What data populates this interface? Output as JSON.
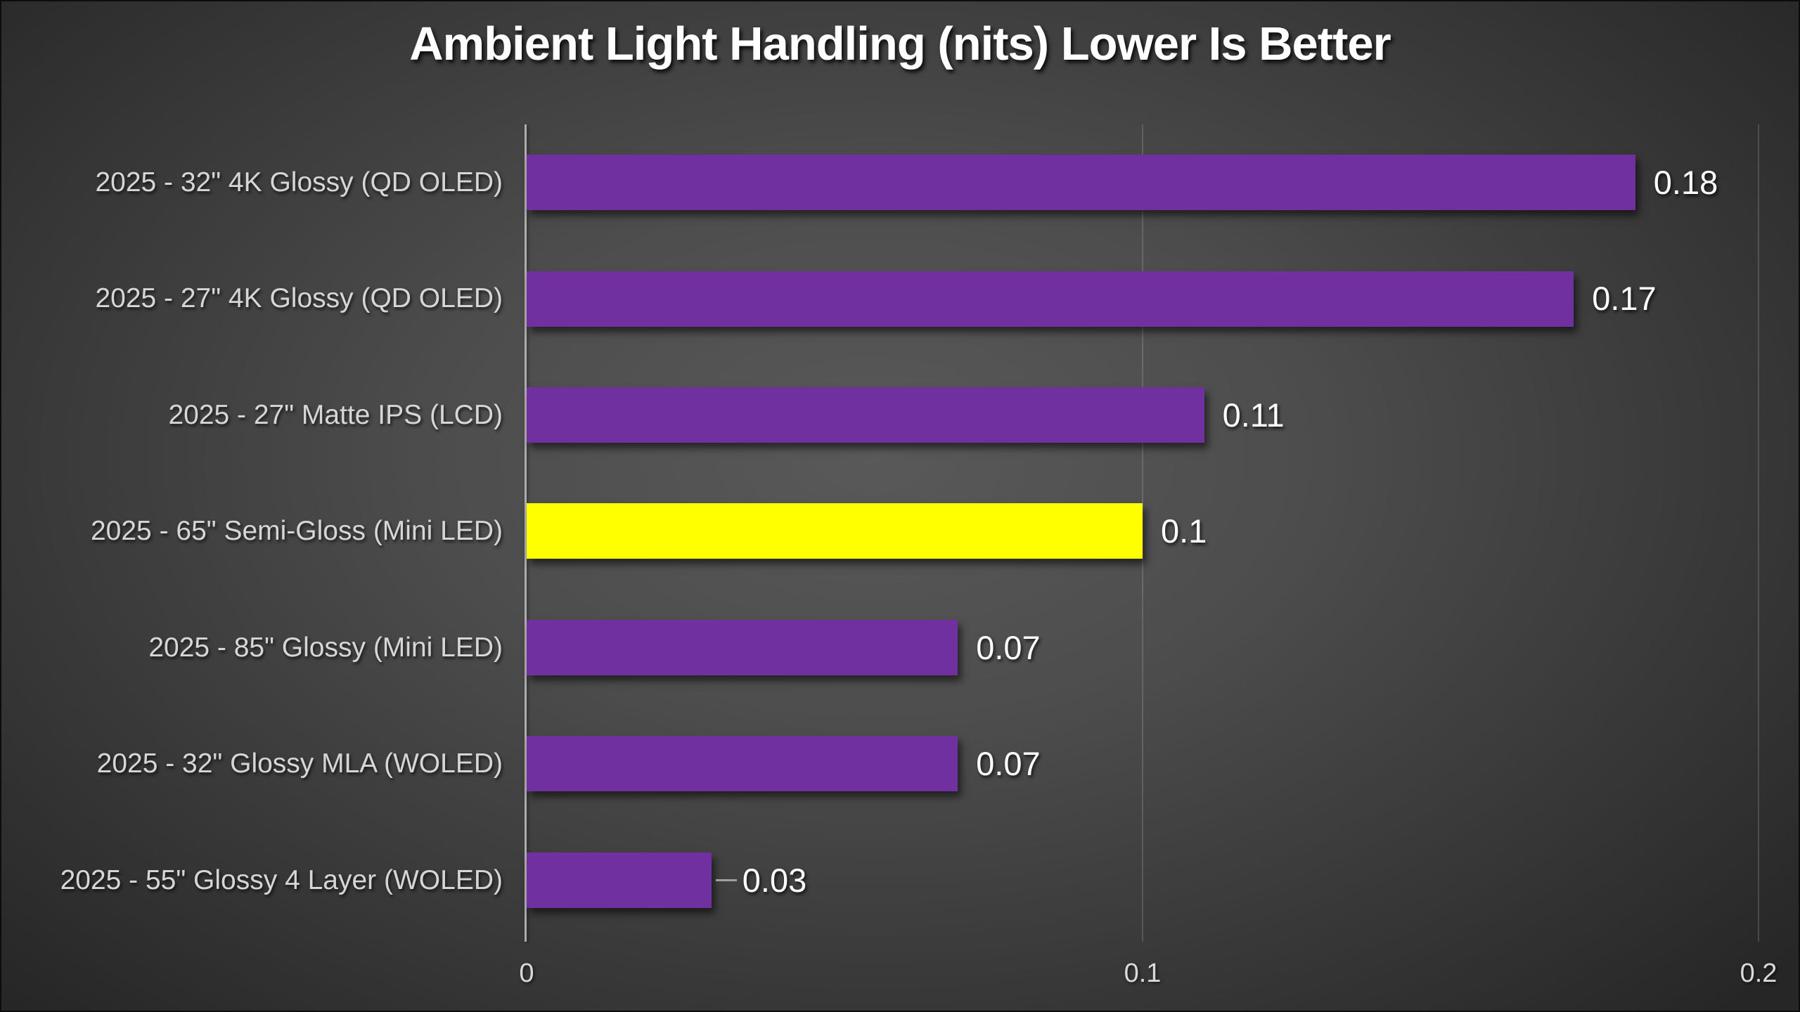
{
  "chart_data": {
    "type": "bar",
    "orientation": "horizontal",
    "title": "Ambient Light Handling (nits) Lower Is Better",
    "xlabel": "",
    "ylabel": "",
    "categories": [
      "2025 - 32\" 4K Glossy (QD OLED)",
      "2025 - 27\" 4K Glossy (QD OLED)",
      "2025 - 27\" Matte IPS (LCD)",
      "2025 - 65\" Semi-Gloss (Mini LED)",
      "2025 - 85\" Glossy (Mini LED)",
      "2025 - 32\" Glossy MLA (WOLED)",
      "2025 - 55\" Glossy 4 Layer (WOLED)"
    ],
    "values": [
      0.18,
      0.17,
      0.11,
      0.1,
      0.07,
      0.07,
      0.03
    ],
    "value_labels": [
      "0.18",
      "0.17",
      "0.11",
      "0.1",
      "0.07",
      "0.07",
      "0.03"
    ],
    "xlim": [
      0,
      0.2
    ],
    "x_ticks": [
      "0",
      "0.1",
      "0.2"
    ],
    "x_tick_values": [
      0,
      0.1,
      0.2
    ],
    "grid": true,
    "legend": false,
    "highlight_index": 3,
    "leader_line_index": 6
  },
  "colors": {
    "bar": "#7030A0",
    "bar_highlight": "#FFFF00",
    "title_text": "#ffffff",
    "category_text": "#d6d6d6",
    "value_text": "#ffffff",
    "tick_text": "#d9d9d9",
    "axis_line": "#adadad",
    "gridline": "rgba(255,255,255,0.15)",
    "background_center": "#595959",
    "background_edge": "#262626"
  }
}
